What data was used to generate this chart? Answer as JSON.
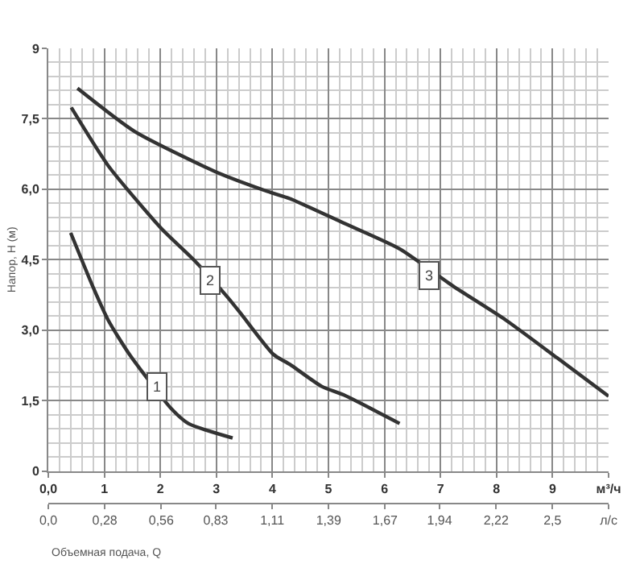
{
  "chart_data": {
    "type": "line",
    "xlabel": null,
    "ylabel": "Напор, H (м)",
    "x2label": "Объемная подача, Q",
    "xlim": [
      0,
      10
    ],
    "xticks": [
      {
        "value": 0,
        "label": "0,0"
      },
      1,
      2,
      3,
      4,
      5,
      6,
      7,
      8,
      9,
      {
        "value": 10,
        "label": "м³/ч"
      }
    ],
    "x2lim": [
      0,
      2.778
    ],
    "x2ticks": [
      {
        "value": 0,
        "label": "0,0"
      },
      {
        "value": 0.28,
        "label": "0,28"
      },
      {
        "value": 0.56,
        "label": "0,56"
      },
      {
        "value": 0.83,
        "label": "0,83"
      },
      {
        "value": 1.11,
        "label": "1,11"
      },
      {
        "value": 1.39,
        "label": "1,39"
      },
      {
        "value": 1.67,
        "label": "1,67"
      },
      {
        "value": 1.94,
        "label": "1,94"
      },
      {
        "value": 2.22,
        "label": "2,22"
      },
      {
        "value": 2.5,
        "label": "2,5"
      },
      {
        "value": 2.778,
        "label": "л/с"
      }
    ],
    "ylim": [
      0,
      9
    ],
    "yticks": [
      0,
      {
        "value": 1.5,
        "label": "1,5"
      },
      {
        "value": 3,
        "label": "3,0"
      },
      {
        "value": 4.5,
        "label": "4,5"
      },
      {
        "value": 6,
        "label": "6,0"
      },
      {
        "value": 7.5,
        "label": "7,5"
      },
      9
    ],
    "grid": true,
    "marker": "none",
    "line_style": "solid",
    "series": [
      {
        "color": "#333333",
        "x": [
          0.4,
          0.79,
          1.07,
          1.45,
          2.2,
          2.5,
          3.29
        ],
        "values": [
          5.07,
          3.94,
          3.21,
          2.48,
          1.32,
          1.01,
          0.7
        ]
      },
      {
        "color": "#333333",
        "x": [
          0.41,
          1.07,
          2.02,
          2.6,
          3.2,
          3.45,
          4.02,
          4.31,
          4.88,
          5.27,
          6.27
        ],
        "values": [
          7.74,
          6.5,
          5.16,
          4.49,
          3.7,
          3.33,
          2.48,
          2.27,
          1.8,
          1.62,
          1.01
        ]
      },
      {
        "color": "#333333",
        "x": [
          0.52,
          1.54,
          2.97,
          3.92,
          4.31,
          5.27,
          6.27,
          7.22,
          8.17,
          9.08,
          10.0
        ],
        "values": [
          8.15,
          7.23,
          6.38,
          5.95,
          5.8,
          5.28,
          4.73,
          3.94,
          3.21,
          2.41,
          1.59
        ]
      }
    ],
    "annotations": [
      {
        "text": "1",
        "x": 1.95,
        "y": 1.78
      },
      {
        "text": "2",
        "x": 2.88,
        "y": 4.06
      },
      {
        "text": "3",
        "x": 6.81,
        "y": 4.16
      }
    ]
  }
}
